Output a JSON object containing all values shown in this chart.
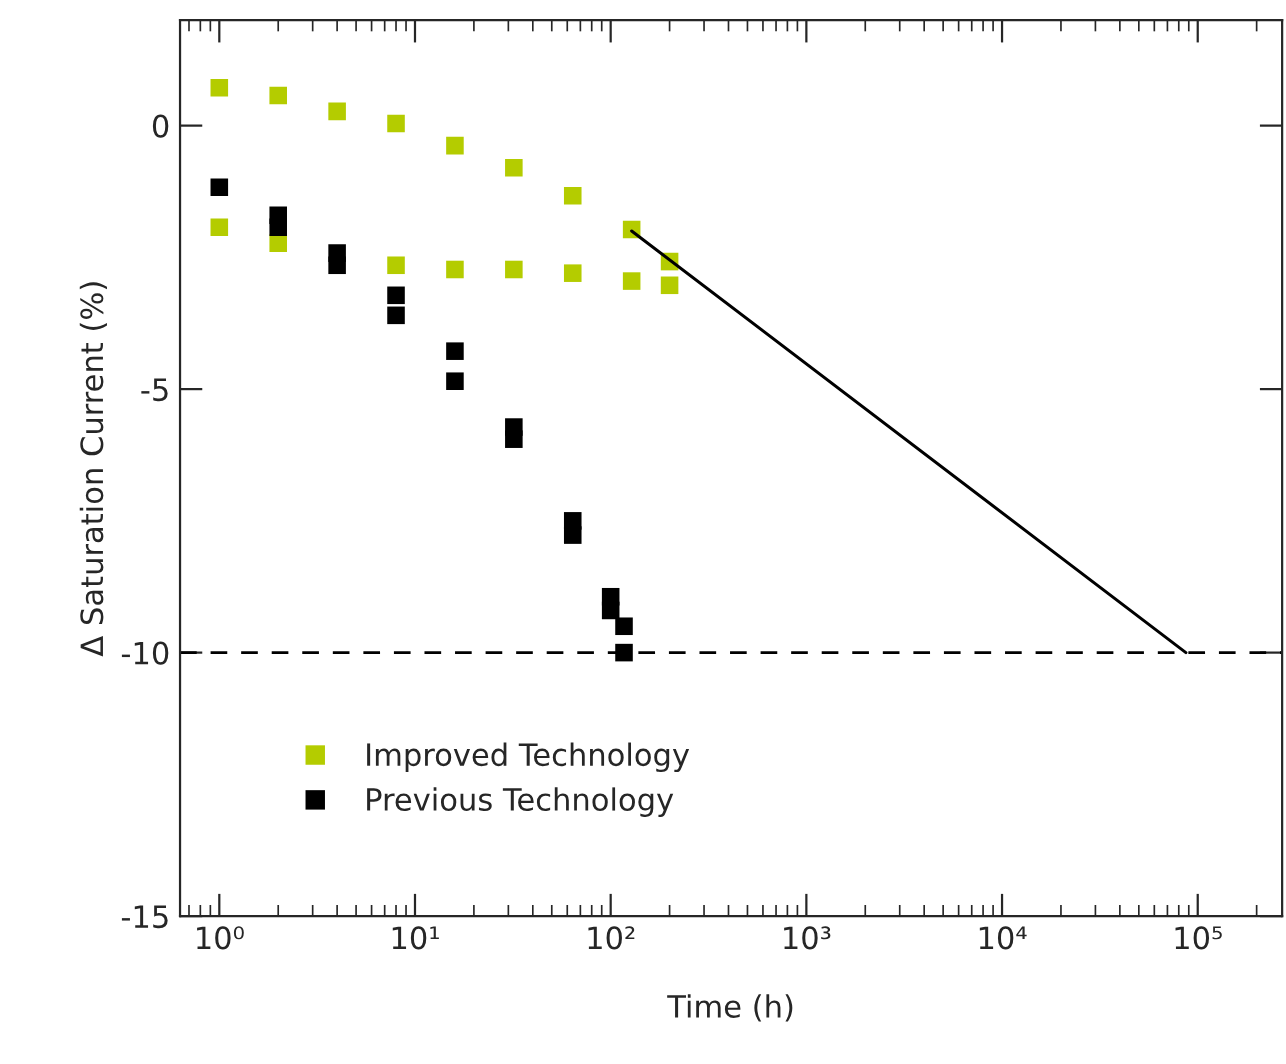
{
  "chart_data": {
    "type": "scatter",
    "xlabel": "Time (h)",
    "ylabel": "Δ Saturation Current (%)",
    "log": "x",
    "xlim": [
      0.63,
      270000
    ],
    "ylim": [
      -15,
      2
    ],
    "xticks": [
      {
        "value": 1,
        "label": "10⁰"
      },
      {
        "value": 10,
        "label": "10¹"
      },
      {
        "value": 100,
        "label": "10²"
      },
      {
        "value": 1000,
        "label": "10³"
      },
      {
        "value": 10000,
        "label": "10⁴"
      },
      {
        "value": 100000,
        "label": "10⁵"
      }
    ],
    "yticks": [
      -15,
      -10,
      -5,
      0
    ],
    "grid": false,
    "legend": "bottom left",
    "series": [
      {
        "name": "Improved Technology",
        "color": "#b4cc00",
        "marker": "square",
        "x": [
          1,
          2,
          4,
          8,
          16,
          32,
          64,
          128,
          200,
          1,
          2,
          4,
          8,
          16,
          32,
          64,
          128,
          200
        ],
        "values": [
          0.72,
          0.57,
          0.27,
          0.04,
          -0.38,
          -0.8,
          -1.33,
          -1.97,
          -2.58,
          -1.93,
          -2.23,
          null,
          -2.65,
          -2.73,
          -2.73,
          -2.8,
          -2.95,
          -3.03
        ]
      },
      {
        "name": "Previous Technology",
        "color": "#000000",
        "marker": "square",
        "x": [
          1,
          2,
          2,
          4,
          4,
          8,
          8,
          16,
          16,
          32,
          32,
          64,
          64,
          100,
          100,
          117,
          117
        ],
        "values": [
          -1.17,
          -1.7,
          -1.93,
          -2.42,
          -2.65,
          -3.22,
          -3.6,
          -4.28,
          -4.85,
          -5.72,
          -5.95,
          -7.5,
          -7.77,
          -8.94,
          -9.2,
          -9.5,
          -10.0
        ]
      },
      {
        "type": "line",
        "color": "#000000",
        "x": [
          128,
          87000
        ],
        "values": [
          -2.0,
          -10.0
        ]
      }
    ],
    "ref_lines": [
      {
        "axis": "y",
        "value": -10,
        "color": "#000000",
        "line_style": "dashed"
      }
    ]
  }
}
